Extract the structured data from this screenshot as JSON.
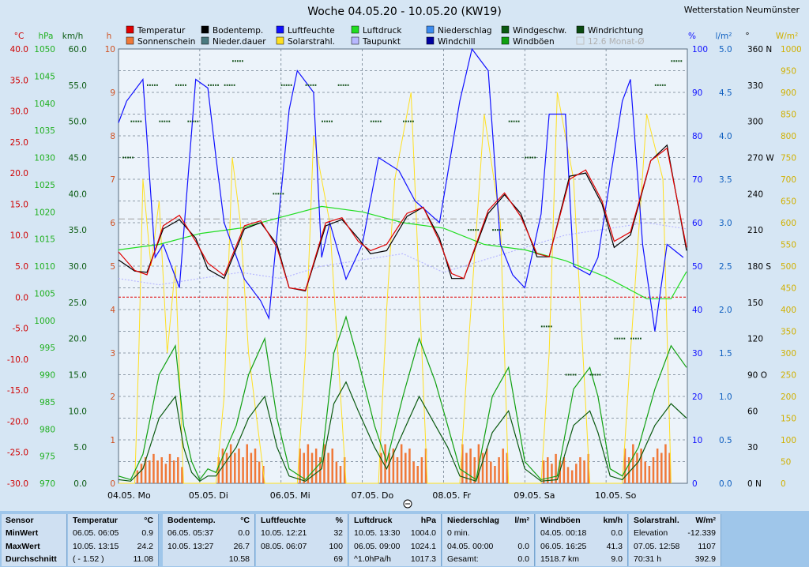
{
  "title": "Woche 04.05.20 - 10.05.20 (KW19)",
  "station": "Wetterstation Neumünster",
  "legend": [
    {
      "label": "Temperatur",
      "color": "#e00000",
      "shape": "box"
    },
    {
      "label": "Bodentemp.",
      "color": "#000000",
      "shape": "box"
    },
    {
      "label": "Luftfeuchte",
      "color": "#1010ff",
      "shape": "box"
    },
    {
      "label": "Luftdruck",
      "color": "#20dd20",
      "shape": "box"
    },
    {
      "label": "Niederschlag",
      "color": "#3c8cf0",
      "shape": "box"
    },
    {
      "label": "Windgeschw.",
      "color": "#0a5a10",
      "shape": "box"
    },
    {
      "label": "Windrichtung",
      "color": "#0a4a10",
      "shape": "box"
    },
    {
      "label": "Sonnenschein",
      "color": "#f07838",
      "shape": "box"
    },
    {
      "label": "Nieder.dauer",
      "color": "#4a7a80",
      "shape": "box"
    },
    {
      "label": "Solarstrahl.",
      "color": "#ffe020",
      "shape": "box"
    },
    {
      "label": "Taupunkt",
      "color": "#b8b8ff",
      "shape": "box"
    },
    {
      "label": "Windchill",
      "color": "#0000a0",
      "shape": "box"
    },
    {
      "label": "Windböen",
      "color": "#10a010",
      "shape": "box"
    },
    {
      "label": "12.6 Monat-Ø",
      "color": "#c0c0c0",
      "shape": "empty"
    }
  ],
  "axis_units": {
    "temp": "°C",
    "press": "hPa",
    "wind": "km/h",
    "sun": "h",
    "hum": "%",
    "rain": "l/m²",
    "dir": "°",
    "solar": "W/m²"
  },
  "chart_data": {
    "type": "line",
    "x_labels": [
      "04.05. Mo",
      "05.05. Di",
      "06.05. Mi",
      "07.05. Do",
      "08.05. Fr",
      "09.05. Sa",
      "10.05. So"
    ],
    "axes": {
      "temp": {
        "unit": "°C",
        "range": [
          -30,
          40
        ],
        "ticks": [
          "40.0",
          "35.0",
          "30.0",
          "25.0",
          "20.0",
          "15.0",
          "10.0",
          "5.0",
          "0.0",
          "-5.0",
          "-10.0",
          "-15.0",
          "-20.0",
          "-25.0",
          "-30.0"
        ]
      },
      "pressure": {
        "unit": "hPa",
        "range": [
          970,
          1050
        ],
        "ticks": [
          "1050",
          "1045",
          "1040",
          "1035",
          "1030",
          "1025",
          "1020",
          "1015",
          "1010",
          "1005",
          "1000",
          "995",
          "990",
          "985",
          "980",
          "975",
          "970"
        ]
      },
      "wind": {
        "unit": "km/h",
        "range": [
          0,
          60
        ],
        "ticks": [
          "60.0",
          "55.0",
          "50.0",
          "45.0",
          "40.0",
          "35.0",
          "30.0",
          "25.0",
          "20.0",
          "15.0",
          "10.0",
          "5.0",
          "0.0"
        ]
      },
      "sunshine": {
        "unit": "h",
        "range": [
          0,
          10
        ],
        "ticks": [
          "10",
          "9",
          "8",
          "7",
          "6",
          "5",
          "4",
          "3",
          "2",
          "1",
          "0"
        ]
      },
      "humidity": {
        "unit": "%",
        "range": [
          0,
          100
        ],
        "ticks": [
          "100",
          "90",
          "80",
          "70",
          "60",
          "50",
          "40",
          "30",
          "20",
          "10",
          "0"
        ]
      },
      "rain": {
        "unit": "l/m²",
        "range": [
          0,
          5
        ],
        "ticks": [
          "5.0",
          "4.5",
          "4.0",
          "3.5",
          "3.0",
          "2.5",
          "2.0",
          "1.5",
          "1.0",
          "0.5",
          "0.0"
        ]
      },
      "direction": {
        "unit": "°",
        "range": [
          0,
          360
        ],
        "ticks": [
          "360 N",
          "330",
          "300",
          "270 W",
          "240",
          "210",
          "180 S",
          "150",
          "120",
          "90 O",
          "60",
          "30",
          "0 N"
        ]
      },
      "solar": {
        "unit": "W/m²",
        "range": [
          0,
          1000
        ],
        "ticks": [
          "1000",
          "950",
          "900",
          "850",
          "800",
          "750",
          "700",
          "650",
          "600",
          "550",
          "500",
          "450",
          "400",
          "350",
          "300",
          "250",
          "200",
          "150",
          "100",
          "50",
          "0"
        ]
      }
    },
    "series": [
      {
        "name": "Temperatur",
        "axis": "temp",
        "color": "#e00000",
        "x_days": [
          0,
          0.2,
          0.35,
          0.55,
          0.75,
          0.95,
          1.1,
          1.3,
          1.55,
          1.75,
          1.95,
          2.1,
          2.3,
          2.55,
          2.75,
          2.95,
          3.1,
          3.3,
          3.55,
          3.75,
          3.95,
          4.1,
          4.25,
          4.55,
          4.75,
          4.95,
          5.15,
          5.3,
          5.55,
          5.75,
          5.95,
          6.1,
          6.3,
          6.55,
          6.75,
          6.99
        ],
        "values": [
          7.3,
          4.3,
          3.6,
          11.5,
          13.2,
          9,
          5.5,
          3.5,
          11.5,
          12.3,
          8,
          1.5,
          1.1,
          12,
          12.8,
          9,
          7.5,
          8.5,
          13.5,
          14.5,
          9,
          3.8,
          3,
          14,
          16.8,
          13,
          7,
          6.5,
          19,
          20.5,
          15.5,
          9,
          10.5,
          22,
          24,
          8
        ]
      },
      {
        "name": "Bodentemp.",
        "axis": "temp",
        "color": "#000000",
        "x_days": [
          0,
          0.2,
          0.35,
          0.55,
          0.75,
          0.95,
          1.1,
          1.3,
          1.55,
          1.75,
          1.95,
          2.1,
          2.3,
          2.55,
          2.75,
          2.95,
          3.1,
          3.3,
          3.55,
          3.75,
          3.95,
          4.1,
          4.25,
          4.55,
          4.75,
          4.95,
          5.15,
          5.3,
          5.55,
          5.75,
          5.95,
          6.1,
          6.3,
          6.55,
          6.75,
          6.99
        ],
        "values": [
          6,
          4.2,
          4,
          11,
          12.5,
          9.5,
          4.5,
          3,
          11,
          12,
          8.5,
          1.5,
          1,
          11.5,
          12.5,
          9.5,
          7,
          7.5,
          13,
          14.5,
          9.5,
          3,
          3,
          13.5,
          16.5,
          13.5,
          6.5,
          6.5,
          19.5,
          20,
          15,
          8,
          10,
          22,
          24.5,
          7.5
        ]
      },
      {
        "name": "Luftfeuchte",
        "axis": "humidity",
        "color": "#1010ff",
        "x_days": [
          0,
          0.1,
          0.3,
          0.45,
          0.55,
          0.75,
          0.95,
          1.1,
          1.2,
          1.3,
          1.55,
          1.75,
          1.85,
          2.1,
          2.2,
          2.4,
          2.5,
          2.6,
          2.8,
          3.0,
          3.2,
          3.45,
          3.65,
          3.95,
          4.2,
          4.35,
          4.55,
          4.7,
          4.85,
          5.0,
          5.2,
          5.3,
          5.5,
          5.6,
          5.8,
          5.9,
          6.2,
          6.3,
          6.45,
          6.6,
          6.75,
          6.95
        ],
        "values": [
          83,
          88,
          93,
          52,
          55,
          45,
          93,
          91,
          75,
          60,
          47,
          42,
          38,
          86,
          95,
          90,
          52,
          60,
          47,
          55,
          75,
          72,
          65,
          60,
          88,
          100,
          95,
          55,
          48,
          45,
          62,
          85,
          85,
          50,
          48,
          52,
          88,
          93,
          55,
          35,
          55,
          52
        ]
      },
      {
        "name": "Luftdruck",
        "axis": "pressure",
        "color": "#20dd20",
        "x_days": [
          0,
          0.5,
          1,
          1.5,
          2,
          2.5,
          3,
          3.5,
          4,
          4.5,
          5,
          5.5,
          6,
          6.5,
          6.8,
          6.99
        ],
        "values": [
          1013,
          1014,
          1016,
          1017,
          1019,
          1021,
          1020,
          1018,
          1017,
          1014,
          1013,
          1011,
          1008,
          1004,
          1004,
          1009
        ]
      },
      {
        "name": "Windböen",
        "axis": "wind",
        "color": "#10a010",
        "x_days": [
          0,
          0.15,
          0.3,
          0.5,
          0.7,
          0.8,
          0.9,
          1.0,
          1.1,
          1.2,
          1.45,
          1.6,
          1.8,
          1.95,
          2.1,
          2.3,
          2.5,
          2.65,
          2.8,
          2.95,
          3.15,
          3.3,
          3.5,
          3.7,
          3.9,
          4.05,
          4.2,
          4.4,
          4.6,
          4.8,
          5.0,
          5.2,
          5.4,
          5.6,
          5.8,
          5.9,
          6.05,
          6.2,
          6.4,
          6.6,
          6.8,
          6.99
        ],
        "values": [
          1,
          0.5,
          4,
          15,
          19,
          8,
          3,
          0.5,
          2,
          1.5,
          8,
          15,
          20,
          9,
          2,
          0.5,
          3,
          18,
          23,
          17,
          8,
          3,
          12,
          20,
          14,
          8,
          2,
          0.5,
          12,
          16,
          3,
          0.5,
          1,
          13,
          16,
          12,
          2,
          1,
          5,
          13,
          19,
          16
        ]
      },
      {
        "name": "Windgeschw.",
        "axis": "wind",
        "color": "#0a5a10",
        "x_days": [
          0,
          0.15,
          0.3,
          0.5,
          0.7,
          0.8,
          0.9,
          1.0,
          1.1,
          1.2,
          1.45,
          1.6,
          1.8,
          1.95,
          2.1,
          2.3,
          2.5,
          2.65,
          2.8,
          2.95,
          3.15,
          3.3,
          3.5,
          3.7,
          3.9,
          4.05,
          4.2,
          4.4,
          4.6,
          4.8,
          5.0,
          5.2,
          5.4,
          5.6,
          5.8,
          5.9,
          6.05,
          6.2,
          6.4,
          6.6,
          6.8,
          6.99
        ],
        "values": [
          0.5,
          0.3,
          2,
          9,
          12,
          5,
          1.5,
          0.3,
          1,
          1,
          5,
          9,
          12,
          5,
          1,
          0.3,
          2,
          11,
          14,
          10,
          5,
          2,
          7,
          12,
          8,
          5,
          1,
          0.3,
          7,
          10,
          2,
          0.3,
          0.5,
          8,
          10,
          7,
          1,
          0.5,
          3,
          8,
          11,
          9
        ]
      },
      {
        "name": "Taupunkt",
        "axis": "temp",
        "color": "#b8b8ff",
        "x_days": [
          0,
          0.5,
          1,
          1.5,
          2,
          2.5,
          3,
          3.5,
          4,
          4.5,
          5,
          5.5,
          6,
          6.5,
          6.99
        ],
        "values": [
          3,
          2,
          3,
          4,
          3,
          5,
          6,
          7,
          4,
          6,
          8,
          10,
          11,
          12,
          11
        ]
      },
      {
        "name": "Solarstrahl.",
        "axis": "solar",
        "color": "#ffe020",
        "x_days": [
          0,
          0.2,
          0.25,
          0.3,
          0.4,
          0.5,
          0.6,
          0.7,
          0.8,
          1.2,
          1.3,
          1.4,
          1.5,
          1.6,
          1.8,
          2.2,
          2.3,
          2.4,
          2.6,
          2.8,
          3.2,
          3.3,
          3.4,
          3.6,
          3.8,
          4.2,
          4.3,
          4.5,
          4.7,
          4.8,
          5.2,
          5.3,
          5.4,
          5.6,
          5.8,
          6.2,
          6.3,
          6.5,
          6.7,
          6.8
        ],
        "values": [
          0,
          0,
          300,
          700,
          500,
          650,
          300,
          500,
          0,
          0,
          200,
          750,
          600,
          300,
          0,
          0,
          300,
          800,
          600,
          0,
          0,
          400,
          700,
          900,
          0,
          0,
          300,
          850,
          600,
          0,
          0,
          300,
          900,
          700,
          0,
          0,
          300,
          850,
          700,
          0
        ]
      }
    ],
    "sunshine_bar_day_centers": [
      0.5,
      1.5,
      2.5,
      3.5,
      4.5,
      5.5,
      6.5
    ],
    "wind_direction_samples": [
      [
        0.05,
        270
      ],
      [
        0.15,
        300
      ],
      [
        0.35,
        330
      ],
      [
        0.5,
        300
      ],
      [
        0.7,
        330
      ],
      [
        0.85,
        300
      ],
      [
        1.1,
        330
      ],
      [
        1.3,
        330
      ],
      [
        1.4,
        350
      ],
      [
        1.9,
        240
      ],
      [
        2.0,
        330
      ],
      [
        2.3,
        330
      ],
      [
        2.5,
        300
      ],
      [
        2.7,
        330
      ],
      [
        3.1,
        300
      ],
      [
        3.5,
        300
      ],
      [
        4.3,
        210
      ],
      [
        4.6,
        210
      ],
      [
        4.8,
        300
      ],
      [
        5.0,
        270
      ],
      [
        5.2,
        130
      ],
      [
        5.5,
        90
      ],
      [
        5.8,
        90
      ],
      [
        6.1,
        120
      ],
      [
        6.3,
        120
      ],
      [
        6.6,
        330
      ],
      [
        6.8,
        350
      ]
    ],
    "threshold_temp_zero": 0.0,
    "grid": true
  },
  "stats": {
    "sensor": {
      "header": "Sensor",
      "rows": [
        "MinWert",
        "MaxWert",
        "Durchschnitt"
      ]
    },
    "temp": {
      "header": "Temperatur",
      "unit": "°C",
      "rows": [
        [
          "06.05.  06:05",
          "0.9"
        ],
        [
          "10.05.  13:15",
          "24.2"
        ],
        [
          "( - 1.52 )",
          "11.08"
        ]
      ]
    },
    "boden": {
      "header": "Bodentemp.",
      "unit": "°C",
      "rows": [
        [
          "06.05.  05:37",
          "0.0"
        ],
        [
          "10.05.  13:27",
          "26.7"
        ],
        [
          "",
          "10.58"
        ]
      ]
    },
    "feuchte": {
      "header": "Luftfeuchte",
      "unit": "%",
      "rows": [
        [
          "10.05.  12:21",
          "32"
        ],
        [
          "08.05.  06:07",
          "100"
        ],
        [
          "",
          "69"
        ]
      ]
    },
    "druck": {
      "header": "Luftdruck",
      "unit": "hPa",
      "rows": [
        [
          "10.05.  13:30",
          "1004.0"
        ],
        [
          "06.05.  09:00",
          "1024.1"
        ],
        [
          "^1.0hPa/h",
          "1017.3"
        ]
      ]
    },
    "regen": {
      "header": "Niederschlag",
      "unit": "l/m²",
      "rows": [
        [
          "0 min.",
          ""
        ],
        [
          "04.05.  00:00",
          "0.0"
        ],
        [
          "Gesamt:",
          "0.0"
        ]
      ]
    },
    "boeen": {
      "header": "Windböen",
      "unit": "km/h",
      "rows": [
        [
          "04.05.  00:18",
          "0.0"
        ],
        [
          "06.05.  16:25",
          "41.3"
        ],
        [
          "1518.7 km",
          "9.0"
        ]
      ]
    },
    "solar": {
      "header": "Solarstrahl.",
      "unit": "W/m²",
      "rows": [
        [
          "Elevation",
          "-12.339"
        ],
        [
          "07.05.  12:58",
          "1107"
        ],
        [
          "70:31 h",
          "392.9"
        ]
      ]
    }
  }
}
